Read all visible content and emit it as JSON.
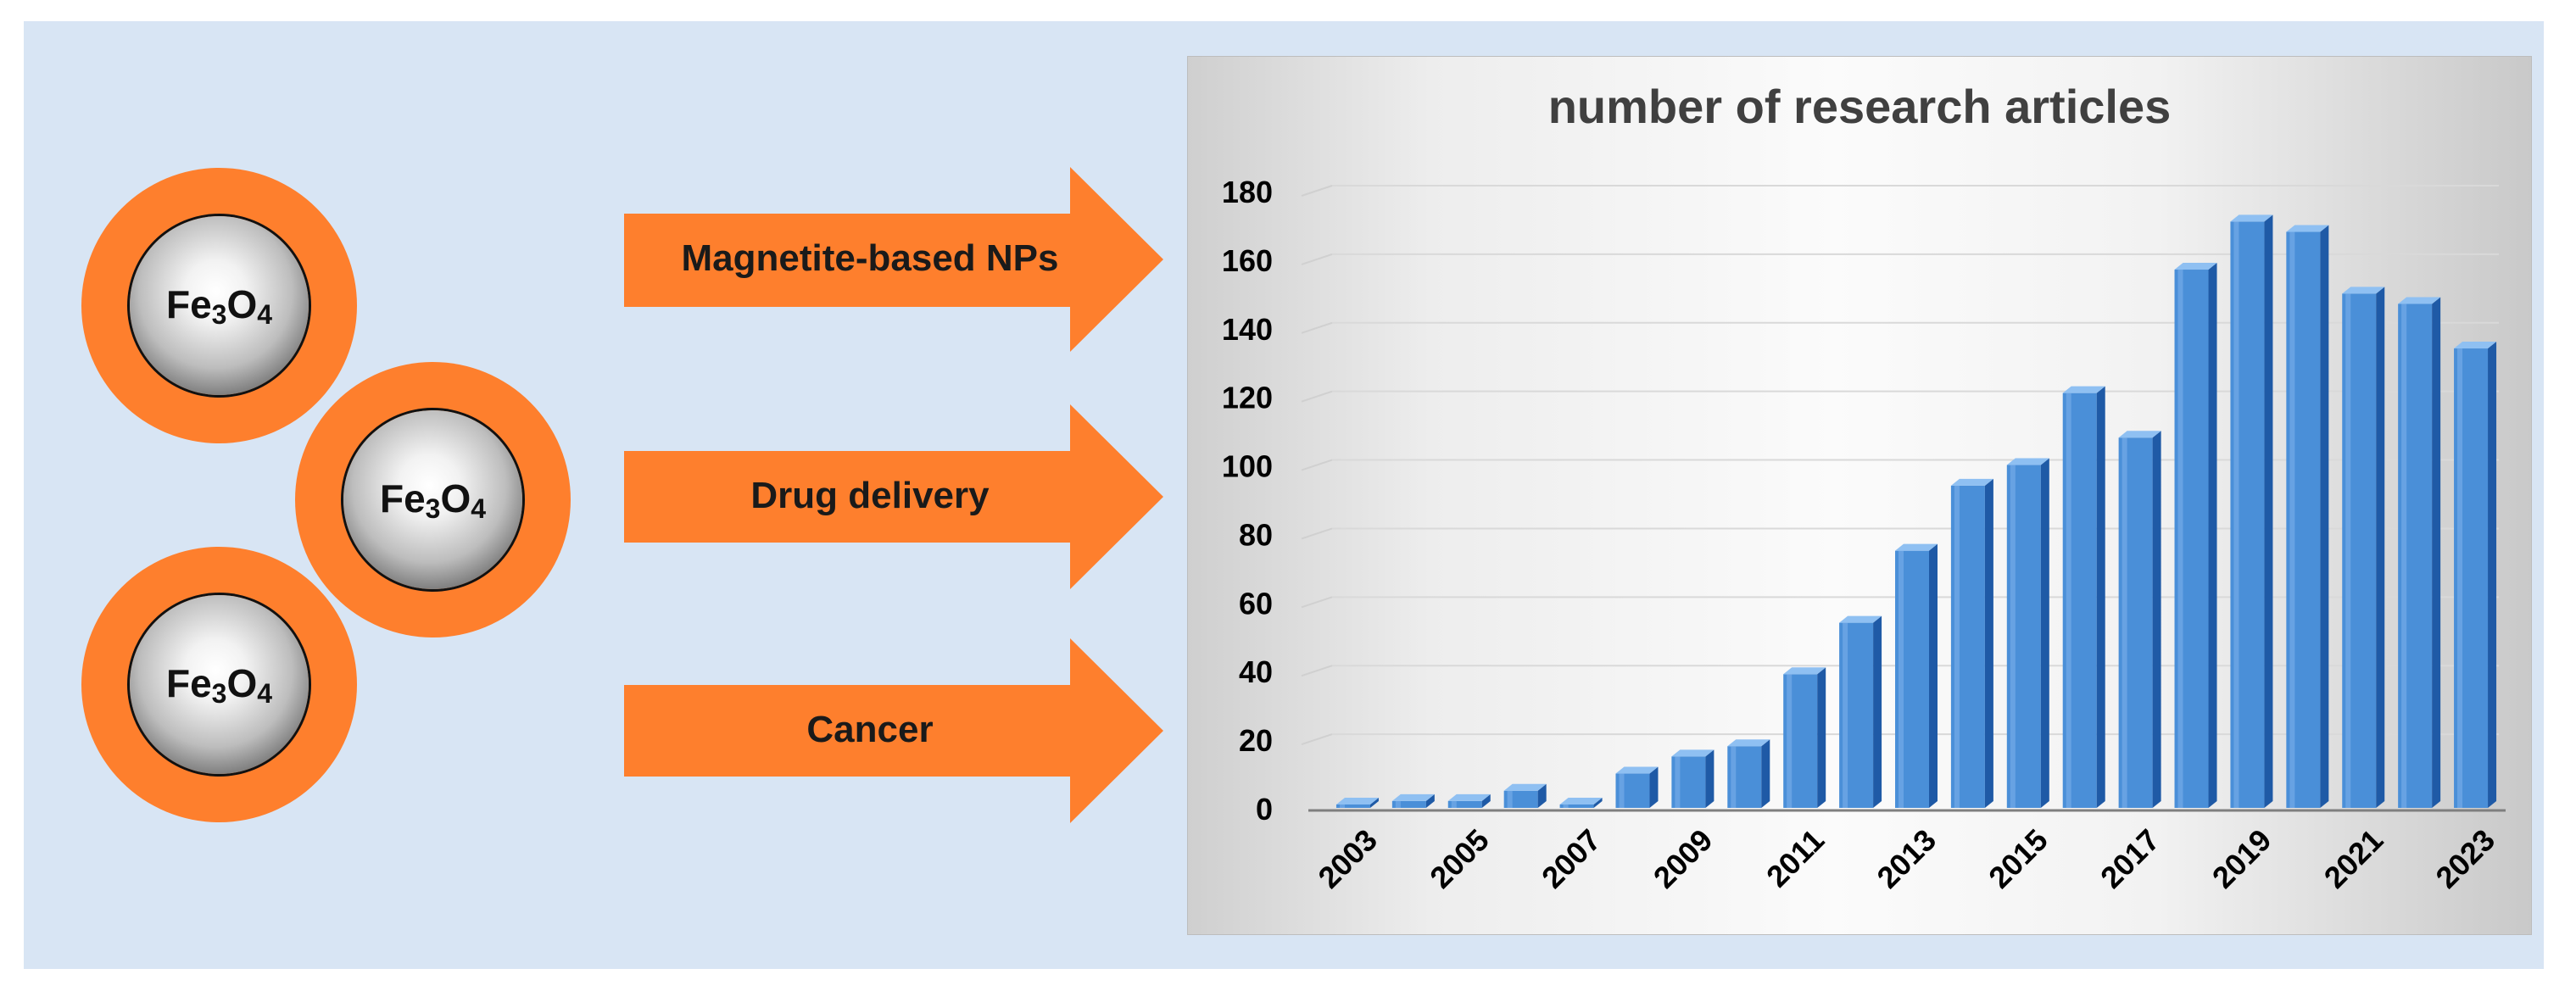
{
  "particles": [
    {
      "formula_base": "Fe",
      "sub1": "3",
      "o": "O",
      "sub2": "4"
    },
    {
      "formula_base": "Fe",
      "sub1": "3",
      "o": "O",
      "sub2": "4"
    },
    {
      "formula_base": "Fe",
      "sub1": "3",
      "o": "O",
      "sub2": "4"
    }
  ],
  "arrows": [
    {
      "label": "Magnetite-based NPs"
    },
    {
      "label": "Drug delivery"
    },
    {
      "label": "Cancer"
    }
  ],
  "colors": {
    "panel_bg": "#d8e5f4",
    "accent_orange": "#fe7f2d",
    "bar_blue": "#4a8fd8",
    "bar_dark": "#1f5aa6"
  },
  "chart_data": {
    "type": "bar",
    "title": "number of research articles",
    "xlabel": "",
    "ylabel": "",
    "ylim": [
      0,
      180
    ],
    "yticks": [
      0,
      20,
      40,
      60,
      80,
      100,
      120,
      140,
      160,
      180
    ],
    "grid": true,
    "categories": [
      "2003",
      "2004",
      "2005",
      "2006",
      "2007",
      "2008",
      "2009",
      "2010",
      "2011",
      "2012",
      "2013",
      "2014",
      "2015",
      "2016",
      "2017",
      "2018",
      "2019",
      "2020",
      "2021",
      "2022",
      "2023"
    ],
    "xtick_labels": [
      "2003",
      "",
      "2005",
      "",
      "2007",
      "",
      "2009",
      "",
      "2011",
      "",
      "2013",
      "",
      "2015",
      "",
      "2017",
      "",
      "2019",
      "",
      "2021",
      "",
      "2023"
    ],
    "values": [
      1,
      2,
      2,
      5,
      1,
      10,
      15,
      18,
      39,
      54,
      75,
      94,
      100,
      121,
      108,
      157,
      171,
      168,
      150,
      147,
      134
    ]
  }
}
